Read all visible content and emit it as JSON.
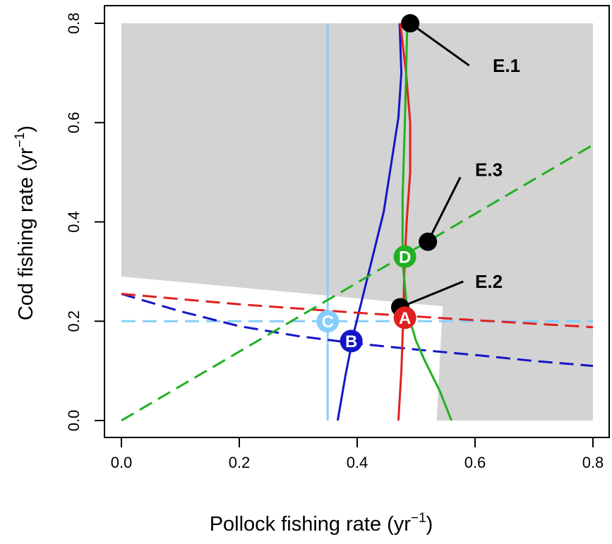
{
  "chart_data": {
    "type": "line",
    "xlabel": "Pollock fishing rate (yr⁻¹)",
    "ylabel": "Cod fishing rate (yr⁻¹)",
    "xlabel_base": "Pollock fishing rate (yr",
    "xlabel_sup": "−1",
    "xlabel_close": ")",
    "ylabel_base": "Cod fishing rate (yr",
    "ylabel_sup": "−1",
    "ylabel_close": ")",
    "xlim": [
      0.0,
      0.8
    ],
    "ylim": [
      0.0,
      0.8
    ],
    "xticks": [
      "0.0",
      "0.2",
      "0.4",
      "0.6",
      "0.8"
    ],
    "yticks": [
      "0.0",
      "0.2",
      "0.4",
      "0.6",
      "0.8"
    ],
    "grid": false,
    "shaded_region": {
      "color": "#d3d3d3",
      "points": [
        [
          0.0,
          0.8
        ],
        [
          0.8,
          0.8
        ],
        [
          0.8,
          0.0
        ],
        [
          0.535,
          0.0
        ],
        [
          0.545,
          0.23
        ],
        [
          0.0,
          0.29
        ]
      ]
    },
    "series": [
      {
        "color": "#87CEFA",
        "dash": "solid",
        "points": [
          [
            0.35,
            0.0
          ],
          [
            0.35,
            0.8
          ]
        ]
      },
      {
        "color": "#87CEFA",
        "dash": "dashed",
        "points": [
          [
            0.0,
            0.2
          ],
          [
            0.8,
            0.2
          ]
        ]
      },
      {
        "color": "#1515c8",
        "dash": "solid",
        "points": [
          [
            0.367,
            0.0
          ],
          [
            0.38,
            0.09
          ],
          [
            0.395,
            0.18
          ],
          [
            0.42,
            0.3
          ],
          [
            0.445,
            0.42
          ],
          [
            0.47,
            0.61
          ],
          [
            0.475,
            0.7
          ],
          [
            0.472,
            0.8
          ]
        ]
      },
      {
        "color": "#1515c8",
        "dash": "dashed",
        "points": [
          [
            0.0,
            0.255
          ],
          [
            0.1,
            0.22
          ],
          [
            0.2,
            0.19
          ],
          [
            0.3,
            0.17
          ],
          [
            0.4,
            0.155
          ],
          [
            0.5,
            0.143
          ],
          [
            0.6,
            0.132
          ],
          [
            0.7,
            0.12
          ],
          [
            0.8,
            0.11
          ]
        ]
      },
      {
        "color": "#e02020",
        "dash": "solid",
        "points": [
          [
            0.47,
            0.0
          ],
          [
            0.475,
            0.1
          ],
          [
            0.478,
            0.2
          ],
          [
            0.48,
            0.3
          ],
          [
            0.484,
            0.4
          ],
          [
            0.49,
            0.5
          ],
          [
            0.49,
            0.6
          ],
          [
            0.483,
            0.7
          ],
          [
            0.473,
            0.8
          ]
        ]
      },
      {
        "color": "#e02020",
        "dash": "dashed",
        "points": [
          [
            0.0,
            0.255
          ],
          [
            0.2,
            0.234
          ],
          [
            0.4,
            0.217
          ],
          [
            0.6,
            0.202
          ],
          [
            0.8,
            0.188
          ]
        ]
      },
      {
        "color": "#22b022",
        "dash": "solid",
        "points": [
          [
            0.56,
            0.0
          ],
          [
            0.54,
            0.06
          ],
          [
            0.515,
            0.12
          ],
          [
            0.5,
            0.16
          ],
          [
            0.485,
            0.22
          ],
          [
            0.477,
            0.32
          ],
          [
            0.477,
            0.45
          ],
          [
            0.481,
            0.6
          ],
          [
            0.485,
            0.8
          ]
        ]
      },
      {
        "color": "#22b022",
        "dash": "dashed",
        "points": [
          [
            0.0,
            0.0
          ],
          [
            0.8,
            0.555
          ]
        ]
      }
    ],
    "points": [
      {
        "label": "A",
        "x": 0.481,
        "y": 0.207,
        "color": "#e02020"
      },
      {
        "label": "B",
        "x": 0.39,
        "y": 0.16,
        "color": "#1515c8"
      },
      {
        "label": "C",
        "x": 0.35,
        "y": 0.2,
        "color": "#87CEFA"
      },
      {
        "label": "D",
        "x": 0.481,
        "y": 0.33,
        "color": "#22b022"
      }
    ],
    "equilibria": [
      {
        "label": "E.1",
        "x": 0.49,
        "y": 0.8,
        "label_x": 0.63,
        "label_y": 0.715,
        "line_to_x": 0.59,
        "line_to_y": 0.715
      },
      {
        "label": "E.2",
        "x": 0.473,
        "y": 0.228,
        "label_x": 0.6,
        "label_y": 0.28,
        "line_to_x": 0.58,
        "line_to_y": 0.28
      },
      {
        "label": "E.3",
        "x": 0.52,
        "y": 0.36,
        "label_x": 0.6,
        "label_y": 0.505,
        "line_to_x": 0.575,
        "line_to_y": 0.49
      }
    ]
  }
}
